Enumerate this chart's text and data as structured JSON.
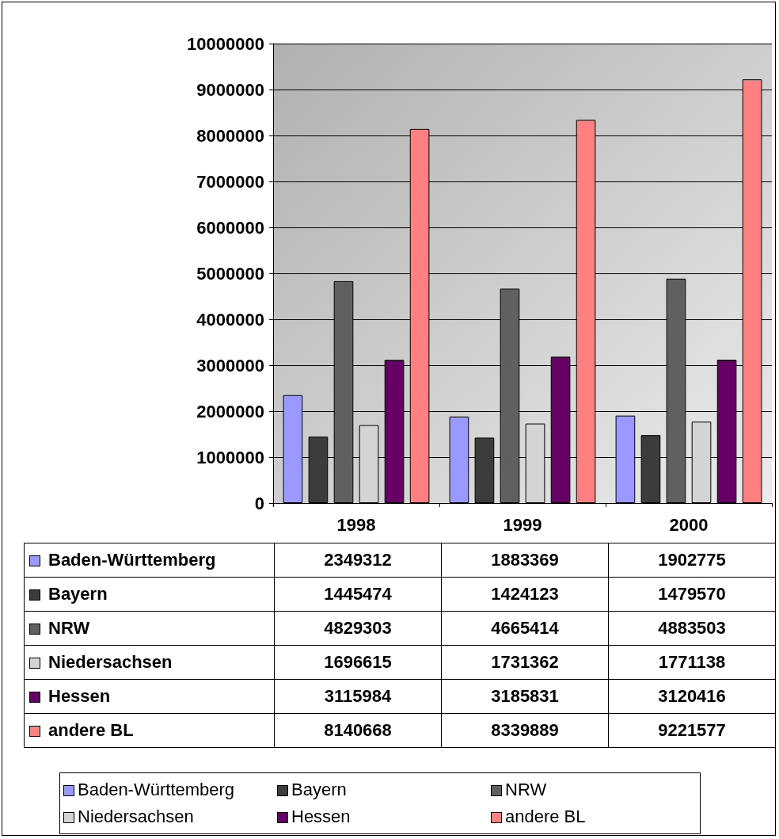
{
  "chart_data": {
    "type": "bar",
    "categories": [
      "1998",
      "1999",
      "2000"
    ],
    "series": [
      {
        "name": "Baden-Württemberg",
        "color": "#9999ff",
        "values": [
          2349312,
          1883369,
          1902775
        ]
      },
      {
        "name": "Bayern",
        "color": "#3c3c3c",
        "values": [
          1445474,
          1424123,
          1479570
        ]
      },
      {
        "name": "NRW",
        "color": "#606060",
        "values": [
          4829303,
          4665414,
          4883503
        ]
      },
      {
        "name": "Niedersachsen",
        "color": "#d4d4d4",
        "values": [
          1696615,
          1731362,
          1771138
        ]
      },
      {
        "name": "Hessen",
        "color": "#660066",
        "values": [
          3115984,
          3185831,
          3120416
        ]
      },
      {
        "name": "andere BL",
        "color": "#ff8080",
        "values": [
          8140668,
          8339889,
          9221577
        ]
      }
    ],
    "ylim": [
      0,
      10000000
    ],
    "yticks": [
      0,
      1000000,
      2000000,
      3000000,
      4000000,
      5000000,
      6000000,
      7000000,
      8000000,
      9000000,
      10000000
    ],
    "grid": "y",
    "legend": "bottom",
    "data_labels": true
  }
}
